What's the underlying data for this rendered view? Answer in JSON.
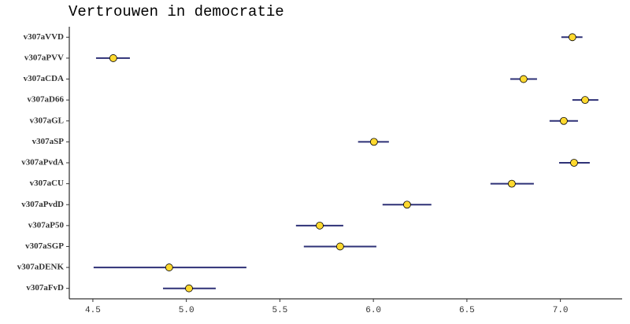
{
  "chart_data": {
    "type": "dot",
    "title": "Vertrouwen in democratie",
    "categories": [
      "v307aVVD",
      "v307aPVV",
      "v307aCDA",
      "v307aD66",
      "v307aGL",
      "v307aSP",
      "v307aPvdA",
      "v307aCU",
      "v307aPvdD",
      "v307aP50",
      "v307aSGP",
      "v307aDENK",
      "v307aFvD"
    ],
    "values": [
      7.064,
      4.609,
      6.803,
      7.132,
      7.018,
      6.003,
      7.073,
      6.74,
      6.18,
      5.713,
      5.822,
      4.908,
      5.014
    ],
    "low": [
      7.005,
      4.517,
      6.732,
      7.064,
      6.942,
      5.918,
      6.993,
      6.626,
      6.049,
      5.586,
      5.628,
      4.504,
      4.875
    ],
    "high": [
      7.118,
      4.698,
      6.875,
      7.203,
      7.094,
      6.083,
      7.157,
      6.858,
      6.31,
      5.839,
      6.016,
      5.321,
      5.157
    ],
    "point_color": "#ffd92f",
    "bar_color": "#2e3176",
    "xlim": [
      4.374,
      7.33
    ],
    "xticks": [
      4.5,
      {
        "value": 5,
        "label": "5.0"
      },
      5.5,
      {
        "value": 6,
        "label": "6.0"
      },
      6.5,
      {
        "value": 7,
        "label": "7.0"
      }
    ]
  }
}
